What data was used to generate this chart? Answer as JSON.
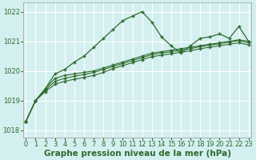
{
  "x": [
    0,
    1,
    2,
    3,
    4,
    5,
    6,
    7,
    8,
    9,
    10,
    11,
    12,
    13,
    14,
    15,
    16,
    17,
    18,
    19,
    20,
    21,
    22,
    23
  ],
  "series_jagged": [
    1018.3,
    1019.0,
    1019.4,
    1019.9,
    1020.05,
    1020.3,
    1020.5,
    1020.8,
    1021.1,
    1021.4,
    1021.7,
    1021.85,
    1022.0,
    1021.65,
    1021.15,
    1020.85,
    1020.6,
    1020.85,
    1021.1,
    1021.15,
    1021.25,
    1021.1,
    1021.5,
    1021.0
  ],
  "series_smooth1": [
    1018.3,
    1019.0,
    1019.4,
    1019.75,
    1019.85,
    1019.9,
    1019.95,
    1020.0,
    1020.1,
    1020.2,
    1020.3,
    1020.4,
    1020.5,
    1020.6,
    1020.65,
    1020.7,
    1020.75,
    1020.8,
    1020.85,
    1020.9,
    1020.95,
    1021.0,
    1021.05,
    1021.0
  ],
  "series_smooth2": [
    1018.3,
    1019.0,
    1019.35,
    1019.65,
    1019.75,
    1019.82,
    1019.88,
    1019.95,
    1020.05,
    1020.15,
    1020.25,
    1020.35,
    1020.45,
    1020.55,
    1020.6,
    1020.65,
    1020.7,
    1020.75,
    1020.82,
    1020.87,
    1020.92,
    1020.97,
    1021.02,
    1020.95
  ],
  "series_smooth3": [
    1018.3,
    1019.0,
    1019.3,
    1019.55,
    1019.65,
    1019.72,
    1019.78,
    1019.85,
    1019.95,
    1020.08,
    1020.18,
    1020.28,
    1020.38,
    1020.48,
    1020.53,
    1020.58,
    1020.63,
    1020.68,
    1020.75,
    1020.8,
    1020.85,
    1020.9,
    1020.95,
    1020.88
  ],
  "line_color": "#2d6a2d",
  "bg_color": "#d4efef",
  "grid_color": "#ffffff",
  "title": "Graphe pression niveau de la mer (hPa)",
  "xlabel_ticks": [
    0,
    1,
    2,
    3,
    4,
    5,
    6,
    7,
    8,
    9,
    10,
    11,
    12,
    13,
    14,
    15,
    16,
    17,
    18,
    19,
    20,
    21,
    22,
    23
  ],
  "ylim": [
    1017.75,
    1022.3
  ],
  "yticks": [
    1018,
    1019,
    1020,
    1021,
    1022
  ],
  "title_fontsize": 7.5,
  "tick_fontsize": 6.0
}
